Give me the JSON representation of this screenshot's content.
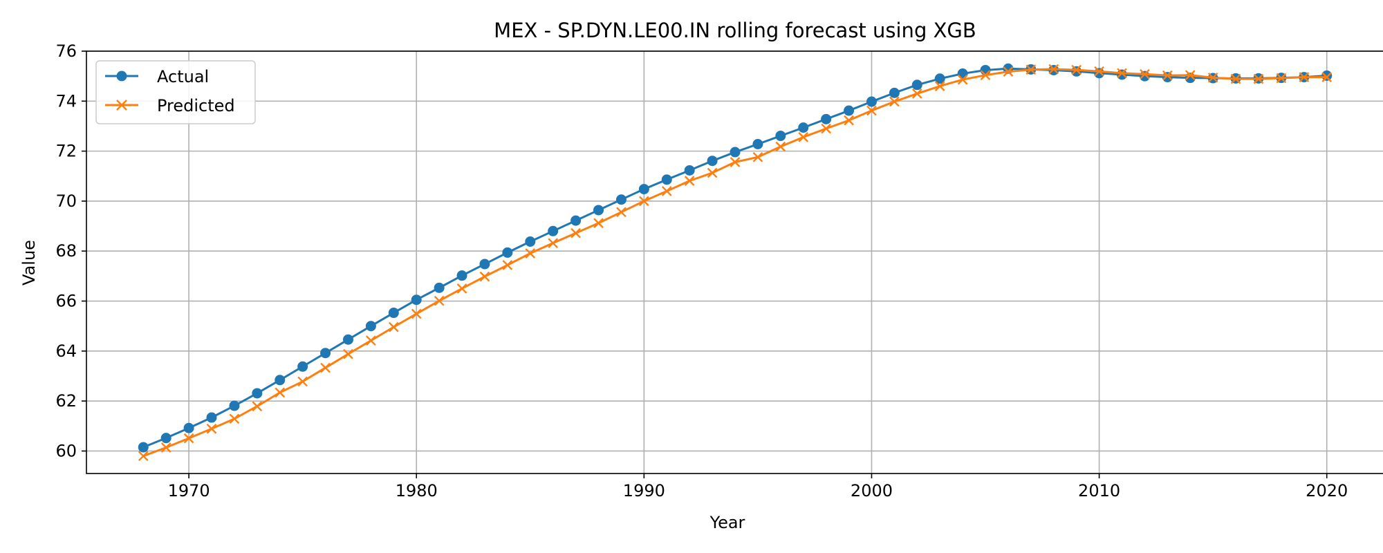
{
  "chart_data": {
    "type": "line",
    "title": "MEX - SP.DYN.LE00.IN rolling forecast using XGB",
    "xlabel": "Year",
    "ylabel": "Value",
    "xlim": [
      1965.5,
      2022.5
    ],
    "ylim": [
      59.1,
      76.0
    ],
    "xticks": [
      1970,
      1980,
      1990,
      2000,
      2010,
      2020
    ],
    "yticks": [
      60,
      62,
      64,
      66,
      68,
      70,
      72,
      74,
      76
    ],
    "grid": true,
    "legend_position": "top-left",
    "x": [
      1968,
      1969,
      1970,
      1971,
      1972,
      1973,
      1974,
      1975,
      1976,
      1977,
      1978,
      1979,
      1980,
      1981,
      1982,
      1983,
      1984,
      1985,
      1986,
      1987,
      1988,
      1989,
      1990,
      1991,
      1992,
      1993,
      1994,
      1995,
      1996,
      1997,
      1998,
      1999,
      2000,
      2001,
      2002,
      2003,
      2004,
      2005,
      2006,
      2007,
      2008,
      2009,
      2010,
      2011,
      2012,
      2013,
      2014,
      2015,
      2016,
      2017,
      2018,
      2019,
      2020
    ],
    "series": [
      {
        "name": "Actual",
        "color": "#1f77b4",
        "marker": "circle",
        "values": [
          60.15,
          60.52,
          60.92,
          61.34,
          61.81,
          62.31,
          62.84,
          63.38,
          63.92,
          64.46,
          65.0,
          65.53,
          66.05,
          66.53,
          67.02,
          67.48,
          67.94,
          68.38,
          68.8,
          69.22,
          69.64,
          70.06,
          70.48,
          70.86,
          71.23,
          71.61,
          71.96,
          72.28,
          72.61,
          72.94,
          73.28,
          73.62,
          73.98,
          74.33,
          74.65,
          74.9,
          75.1,
          75.24,
          75.3,
          75.27,
          75.24,
          75.19,
          75.12,
          75.06,
          75.0,
          74.96,
          74.93,
          74.92,
          74.91,
          74.91,
          74.93,
          74.96,
          75.02
        ]
      },
      {
        "name": "Predicted",
        "color": "#ff7f0e",
        "marker": "x",
        "values": [
          59.8,
          60.14,
          60.51,
          60.89,
          61.29,
          61.79,
          62.34,
          62.78,
          63.33,
          63.88,
          64.42,
          64.96,
          65.49,
          66.01,
          66.5,
          66.98,
          67.44,
          67.91,
          68.32,
          68.72,
          69.12,
          69.56,
          70.0,
          70.4,
          70.81,
          71.13,
          71.56,
          71.76,
          72.18,
          72.56,
          72.9,
          73.23,
          73.62,
          73.98,
          74.3,
          74.6,
          74.86,
          75.04,
          75.18,
          75.26,
          75.28,
          75.25,
          75.19,
          75.12,
          75.08,
          75.03,
          75.04,
          74.94,
          74.89,
          74.89,
          74.92,
          74.96,
          74.96
        ]
      }
    ]
  }
}
